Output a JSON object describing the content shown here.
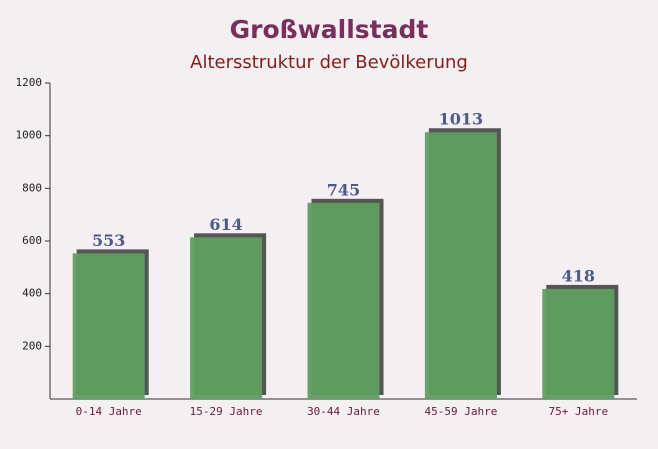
{
  "chart_data": {
    "type": "bar",
    "title": "Großwallstadt",
    "subtitle": "Altersstruktur der Bevölkerung",
    "categories": [
      "0-14 Jahre",
      "15-29 Jahre",
      "30-44 Jahre",
      "45-59 Jahre",
      "75+ Jahre"
    ],
    "values": [
      553,
      614,
      745,
      1013,
      418
    ],
    "color": "#5f9e5f",
    "ylim": [
      0,
      1200
    ],
    "yticks": [
      200,
      400,
      600,
      800,
      1000,
      1200
    ]
  }
}
